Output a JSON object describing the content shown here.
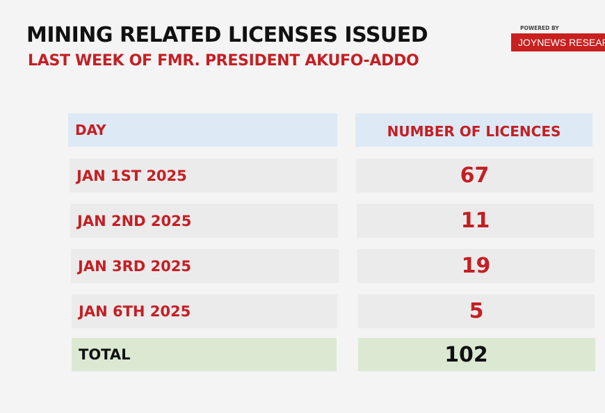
{
  "title": "MINING RELATED LICENSES ISSUED",
  "subtitle": "LAST WEEK OF FMR. PRESIDENT AKUFO-ADDO",
  "branding": {
    "powered_by": "POWERED BY",
    "source": "JOYNEWS RESEARCH"
  },
  "colors": {
    "accent_red": "#c41f24",
    "header_bg": "#dde9f5",
    "row_bg": "#ebebeb",
    "total_bg": "#dbe9d3"
  },
  "chart_data": {
    "type": "table",
    "columns": [
      "DAY",
      "NUMBER OF LICENCES"
    ],
    "rows": [
      [
        "JAN 1ST 2025",
        67
      ],
      [
        "JAN 2ND 2025",
        11
      ],
      [
        "JAN 3RD 2025",
        19
      ],
      [
        "JAN 6TH 2025",
        5
      ]
    ],
    "total": [
      "TOTAL",
      102
    ]
  },
  "table": {
    "header": {
      "day": "DAY",
      "count": "NUMBER OF LICENCES"
    },
    "rows": [
      {
        "day": "JAN 1ST 2025",
        "count": "67"
      },
      {
        "day": "JAN 2ND 2025",
        "count": "11"
      },
      {
        "day": "JAN 3RD 2025",
        "count": "19"
      },
      {
        "day": "JAN 6TH 2025",
        "count": "5"
      }
    ],
    "total": {
      "label": "TOTAL",
      "count": "102"
    }
  }
}
